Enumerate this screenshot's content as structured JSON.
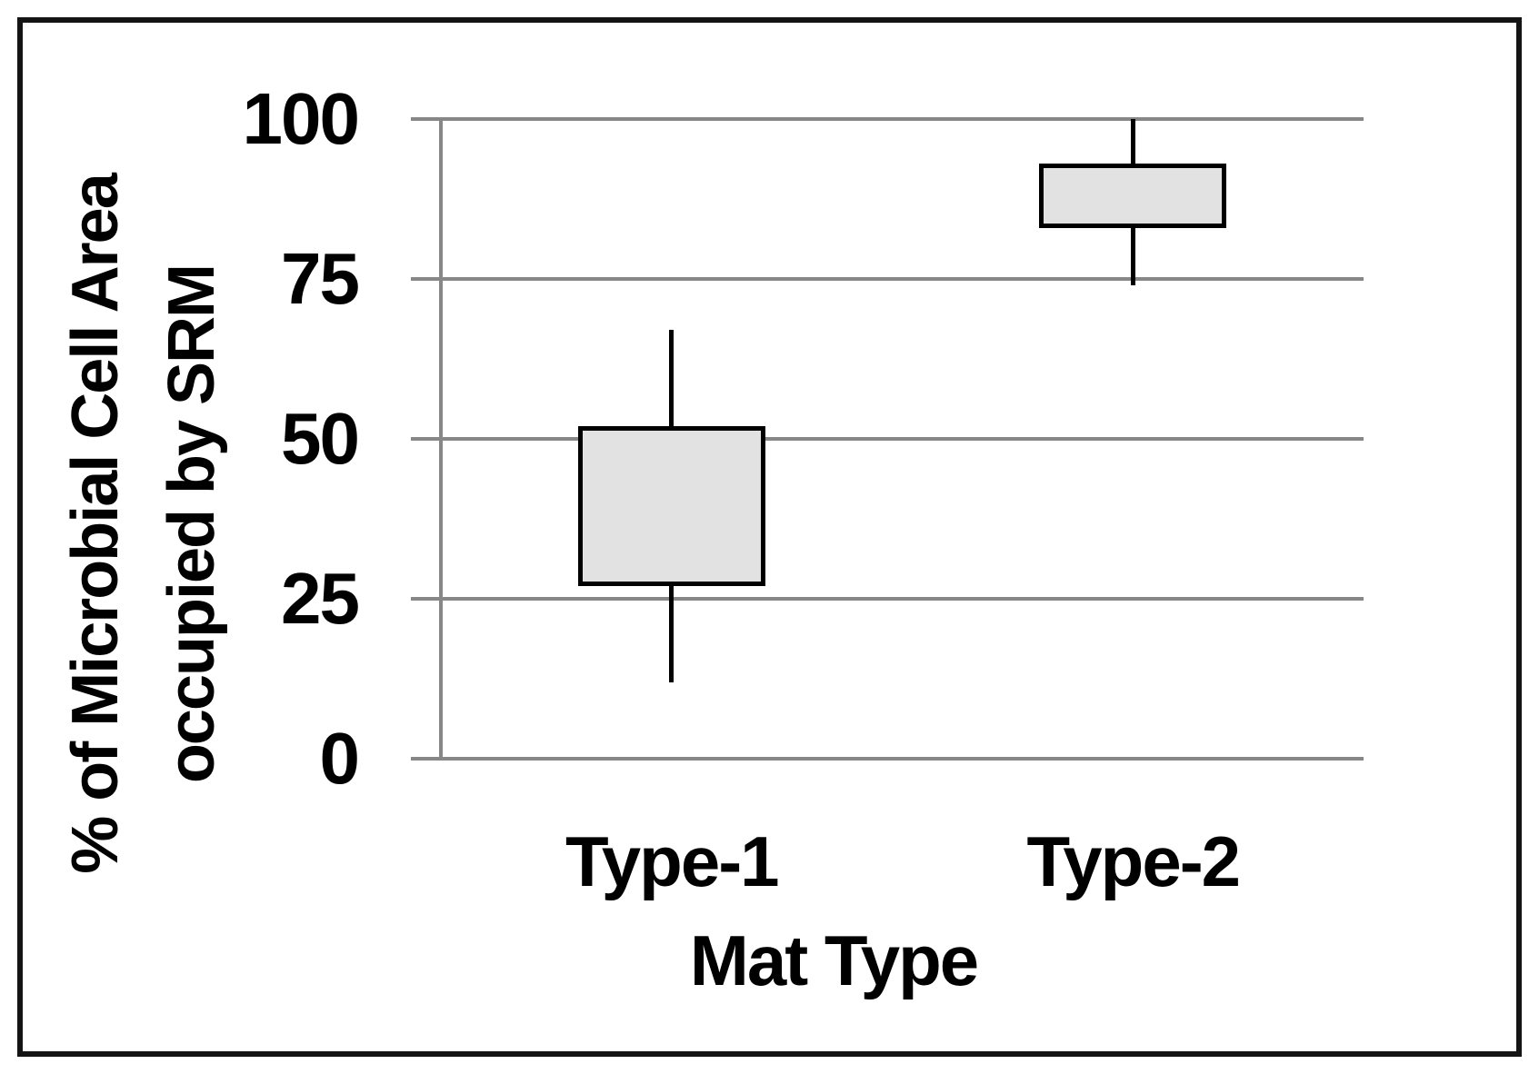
{
  "figure": {
    "y_axis_title_line1": "% of Microbial Cell Area",
    "y_axis_title_line2": "occupied by SRM",
    "x_axis_title": "Mat Type"
  },
  "chart_data": {
    "type": "box",
    "title": "",
    "xlabel": "Mat Type",
    "ylabel": "% of Microbial Cell Area occupied by SRM",
    "ylim": [
      0,
      100
    ],
    "yticks": [
      0,
      25,
      50,
      75,
      100
    ],
    "grid": "horizontal-only",
    "legend": "none",
    "categories": [
      "Type-1",
      "Type-2"
    ],
    "series": [
      {
        "name": "Type-1",
        "whisker_low": 12,
        "q1": 27,
        "q3": 52,
        "whisker_high": 67,
        "median_line_shown": false
      },
      {
        "name": "Type-2",
        "whisker_low": 74,
        "q1": 83,
        "q3": 93,
        "whisker_high": 100,
        "median_line_shown": false
      }
    ],
    "box_fill_color": "#e2e2e2",
    "box_border_color": "#000000",
    "gridline_color": "#878787"
  }
}
